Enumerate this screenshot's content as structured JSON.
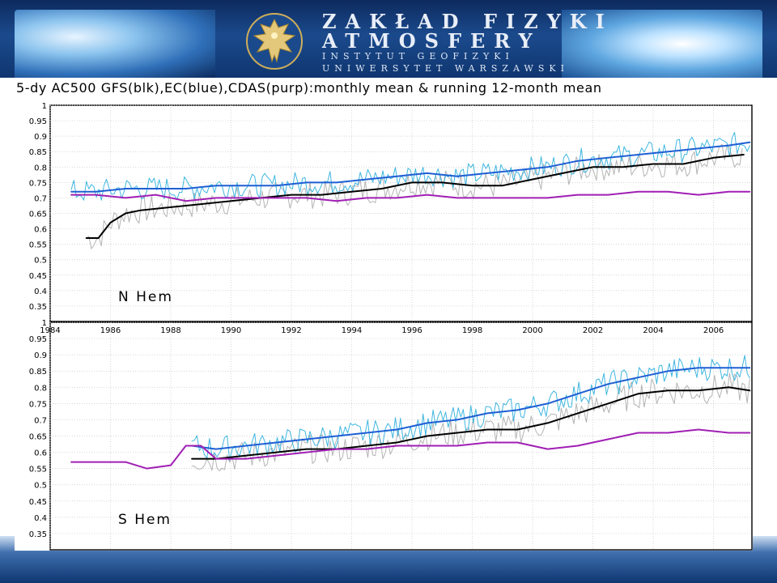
{
  "header": {
    "title_line1": "ZAKŁAD FIZYKI",
    "title_line2": "ATMOSFERY",
    "subtitle_line1": "INSTYTUT GEOFIZYKI",
    "subtitle_line2": "UNIWERSYTET WARSZAWSKI",
    "logo_icon": "eagle-emblem-icon"
  },
  "colors": {
    "gfs": "#000000",
    "ec": "#1e5fd4",
    "cdas": "#a01fb4",
    "monthly_gray": "#b4b4b4",
    "monthly_cyan": "#3fb6e0"
  },
  "chart_data": {
    "type": "line",
    "title": "5-dy AC500 GFS(blk),EC(blue),CDAS(purp):monthly mean & running 12-month mean",
    "x_tick_labels": [
      "1984",
      "1986",
      "1988",
      "1990",
      "1992",
      "1994",
      "1996",
      "1998",
      "2000",
      "2002",
      "2004",
      "2006"
    ],
    "x_ticks": [
      1984,
      1986,
      1988,
      1990,
      1992,
      1994,
      1996,
      1998,
      2000,
      2002,
      2004,
      2006
    ],
    "xlim": [
      1984,
      2007.3
    ],
    "ylim": [
      0.3,
      1.0
    ],
    "y_tick_labels": [
      "0.35",
      "0.4",
      "0.45",
      "0.5",
      "0.55",
      "0.6",
      "0.65",
      "0.7",
      "0.75",
      "0.8",
      "0.85",
      "0.9",
      "0.95",
      "1"
    ],
    "y_ticks": [
      0.35,
      0.4,
      0.45,
      0.5,
      0.55,
      0.6,
      0.65,
      0.7,
      0.75,
      0.8,
      0.85,
      0.9,
      0.95,
      1
    ],
    "grid": true,
    "panels": [
      {
        "label": "N Hem",
        "series": [
          {
            "name": "GFS",
            "style": "running 12-month mean",
            "x": [
              1985.2,
              1985.6,
              1986.0,
              1986.5,
              1987.0,
              1988.0,
              1989.0,
              1990.0,
              1991.0,
              1992.0,
              1993.0,
              1994.0,
              1995.0,
              1996.0,
              1997.0,
              1998.0,
              1999.0,
              2000.0,
              2001.0,
              2002.0,
              2003.0,
              2004.0,
              2005.0,
              2006.0,
              2007.0
            ],
            "y": [
              0.57,
              0.57,
              0.62,
              0.65,
              0.66,
              0.67,
              0.68,
              0.69,
              0.7,
              0.71,
              0.71,
              0.72,
              0.73,
              0.75,
              0.75,
              0.74,
              0.74,
              0.76,
              0.78,
              0.8,
              0.8,
              0.81,
              0.81,
              0.83,
              0.84
            ]
          },
          {
            "name": "EC",
            "style": "running 12-month mean",
            "x": [
              1984.7,
              1985.5,
              1986.5,
              1987.5,
              1988.5,
              1989.5,
              1990.5,
              1991.5,
              1992.5,
              1993.5,
              1994.5,
              1995.5,
              1996.5,
              1997.5,
              1998.5,
              1999.5,
              2000.5,
              2001.5,
              2002.5,
              2003.5,
              2004.5,
              2005.5,
              2006.5,
              2007.2
            ],
            "y": [
              0.72,
              0.72,
              0.73,
              0.73,
              0.73,
              0.74,
              0.74,
              0.74,
              0.75,
              0.75,
              0.76,
              0.77,
              0.78,
              0.77,
              0.78,
              0.79,
              0.8,
              0.82,
              0.83,
              0.84,
              0.85,
              0.86,
              0.87,
              0.88
            ]
          },
          {
            "name": "CDAS",
            "style": "running 12-month mean",
            "x": [
              1984.7,
              1985.5,
              1986.5,
              1987.5,
              1988.5,
              1989.5,
              1990.5,
              1991.5,
              1992.5,
              1993.5,
              1994.5,
              1995.5,
              1996.5,
              1997.5,
              1998.5,
              1999.5,
              2000.5,
              2001.5,
              2002.5,
              2003.5,
              2004.5,
              2005.5,
              2006.5,
              2007.2
            ],
            "y": [
              0.71,
              0.71,
              0.7,
              0.71,
              0.69,
              0.7,
              0.7,
              0.7,
              0.7,
              0.69,
              0.7,
              0.7,
              0.71,
              0.7,
              0.7,
              0.7,
              0.7,
              0.71,
              0.71,
              0.72,
              0.72,
              0.71,
              0.72,
              0.72
            ]
          }
        ]
      },
      {
        "label": "S Hem",
        "series": [
          {
            "name": "GFS",
            "style": "running 12-month mean",
            "x": [
              1988.7,
              1989.5,
              1990.5,
              1991.5,
              1992.5,
              1993.5,
              1994.5,
              1995.5,
              1996.5,
              1997.5,
              1998.5,
              1999.5,
              2000.5,
              2001.5,
              2002.5,
              2003.5,
              2004.5,
              2005.5,
              2006.5,
              2007.2
            ],
            "y": [
              0.58,
              0.58,
              0.59,
              0.6,
              0.61,
              0.61,
              0.62,
              0.63,
              0.65,
              0.66,
              0.67,
              0.67,
              0.69,
              0.72,
              0.75,
              0.78,
              0.79,
              0.79,
              0.8,
              0.79
            ]
          },
          {
            "name": "EC",
            "style": "running 12-month mean",
            "x": [
              1988.7,
              1989.5,
              1990.5,
              1991.5,
              1992.5,
              1993.5,
              1994.5,
              1995.5,
              1996.5,
              1997.5,
              1998.5,
              1999.5,
              2000.5,
              2001.5,
              2002.5,
              2003.5,
              2004.5,
              2005.5,
              2006.5,
              2007.2
            ],
            "y": [
              0.62,
              0.61,
              0.62,
              0.63,
              0.64,
              0.65,
              0.66,
              0.67,
              0.69,
              0.7,
              0.72,
              0.73,
              0.75,
              0.78,
              0.81,
              0.83,
              0.85,
              0.86,
              0.86,
              0.86
            ]
          },
          {
            "name": "CDAS",
            "style": "running 12-month mean",
            "x": [
              1984.7,
              1985.5,
              1986.5,
              1987.2,
              1988.0,
              1988.5,
              1989.0,
              1989.5,
              1990.5,
              1991.5,
              1992.5,
              1993.5,
              1994.5,
              1995.5,
              1996.5,
              1997.5,
              1998.5,
              1999.5,
              2000.5,
              2001.5,
              2002.5,
              2003.5,
              2004.5,
              2005.5,
              2006.5,
              2007.2
            ],
            "y": [
              0.57,
              0.57,
              0.57,
              0.55,
              0.56,
              0.62,
              0.62,
              0.58,
              0.58,
              0.59,
              0.6,
              0.61,
              0.61,
              0.62,
              0.62,
              0.62,
              0.63,
              0.63,
              0.61,
              0.62,
              0.64,
              0.66,
              0.66,
              0.67,
              0.66,
              0.66
            ]
          }
        ]
      }
    ]
  }
}
